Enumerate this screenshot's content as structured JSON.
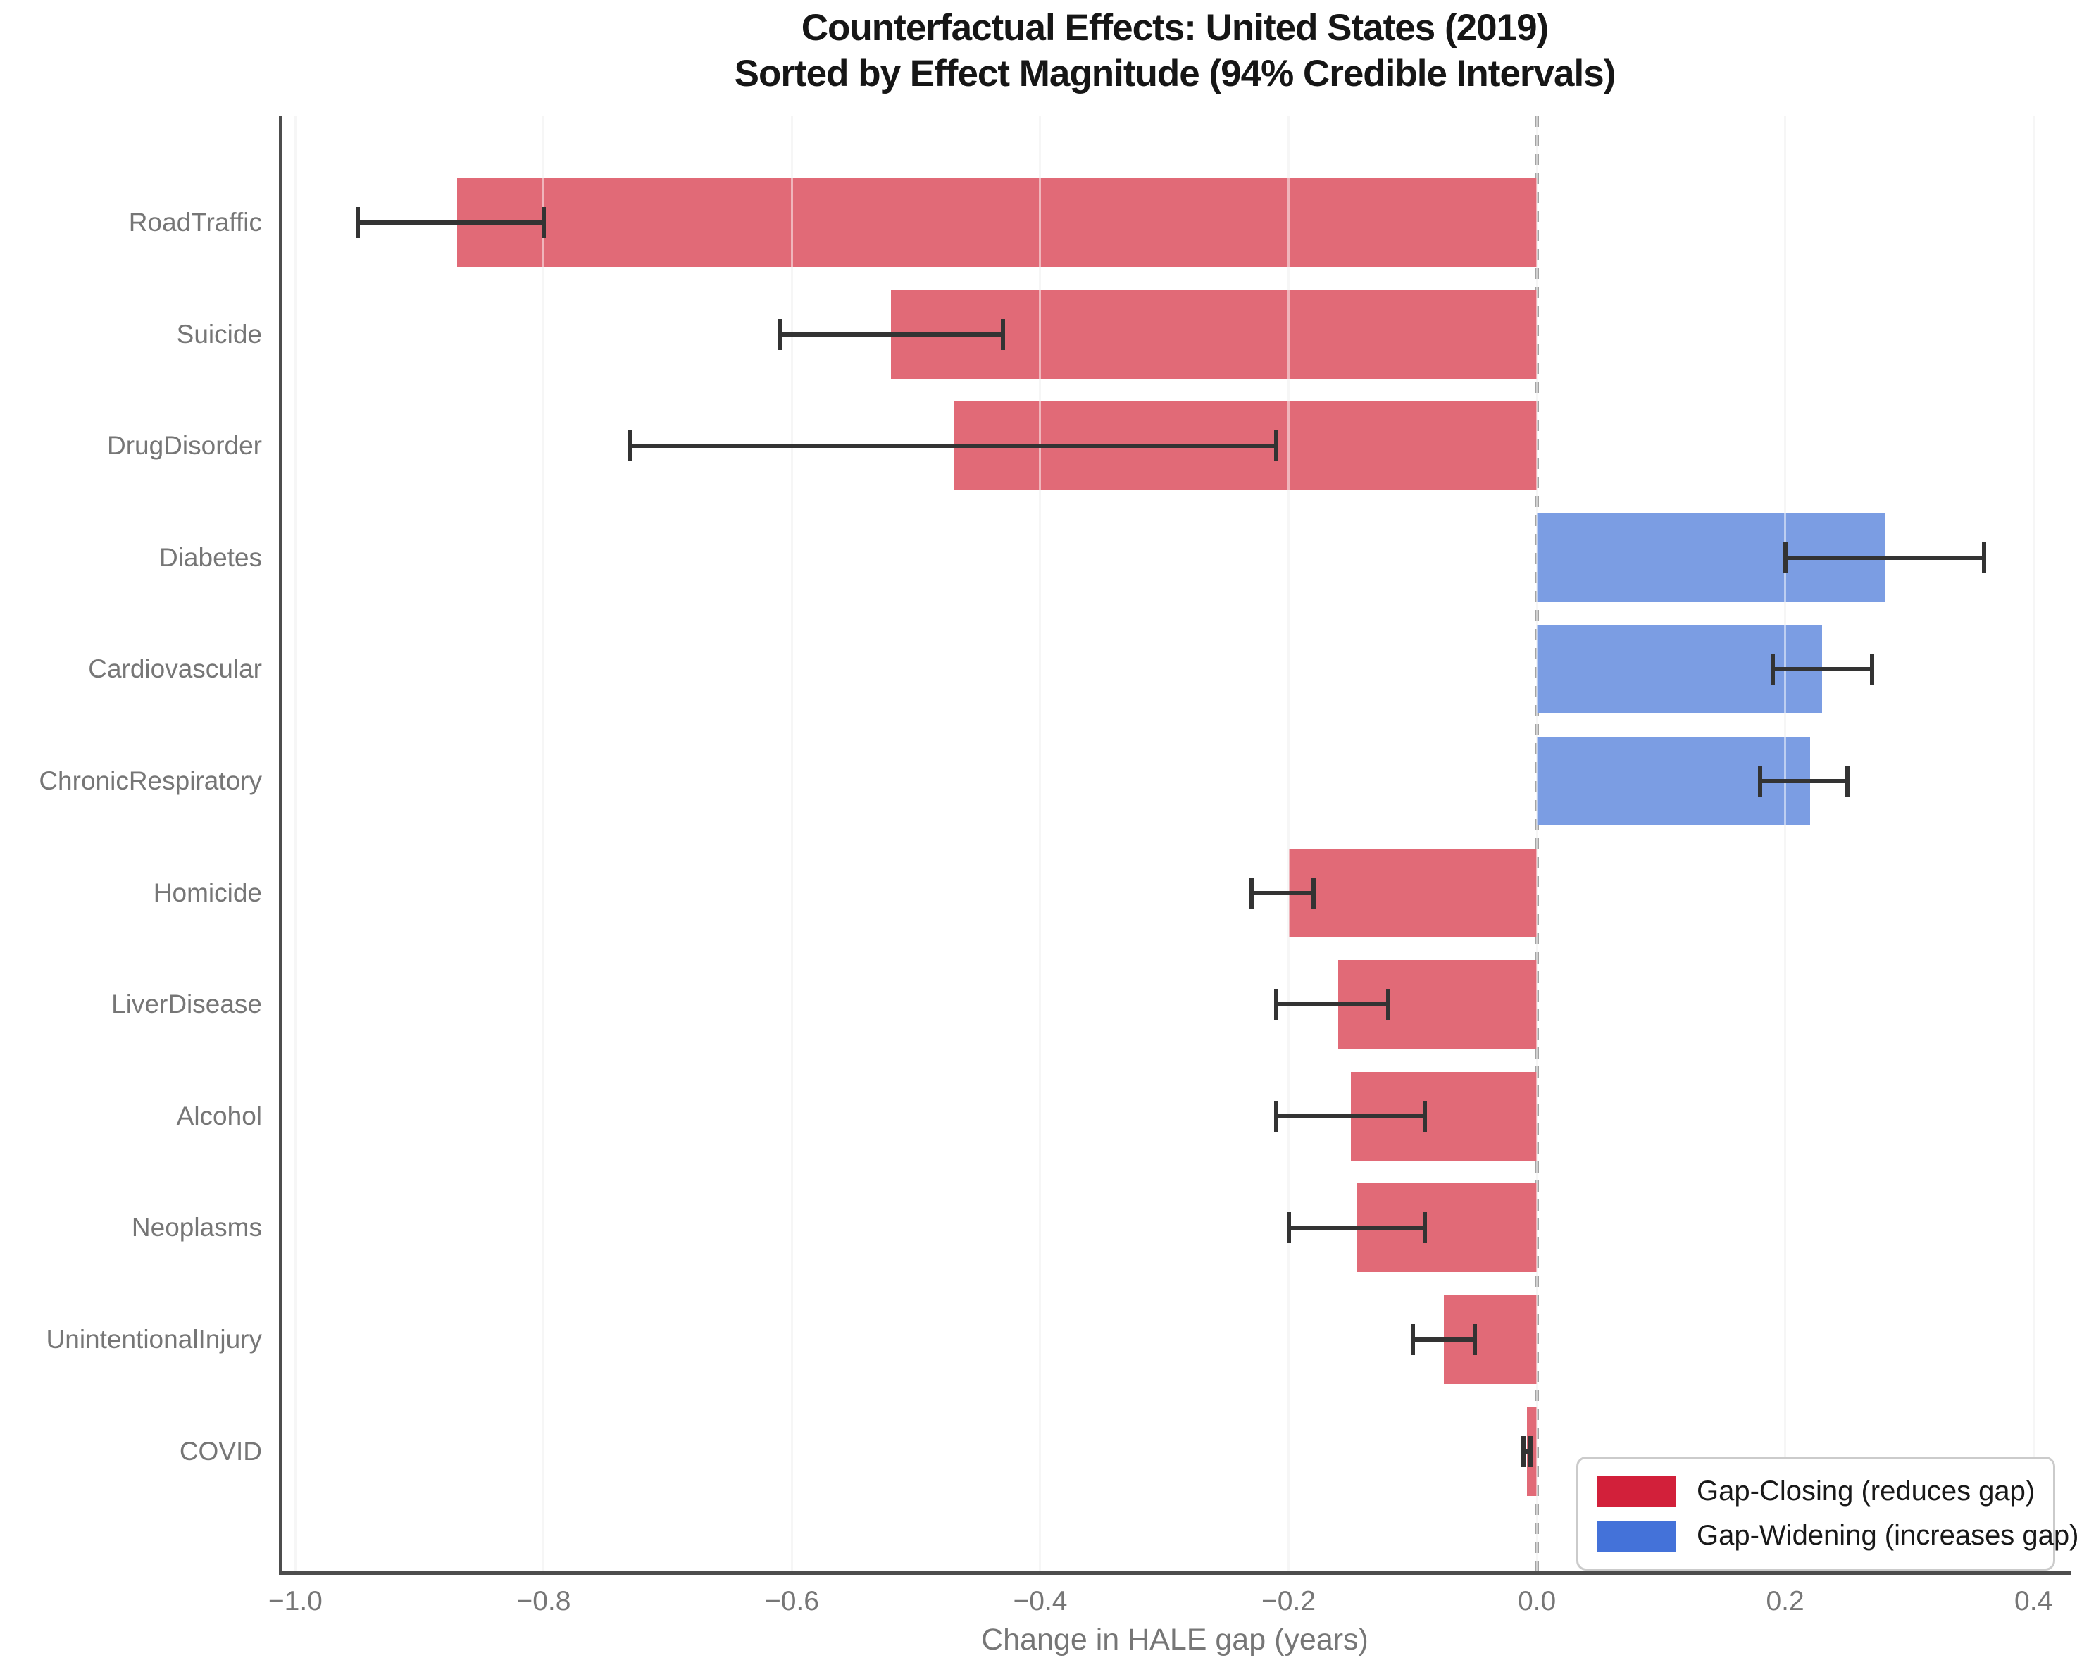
{
  "chart_data": {
    "type": "bar",
    "orientation": "horizontal",
    "title": "Counterfactual Effects: United States (2019)",
    "subtitle": "Sorted by Effect Magnitude (94% Credible Intervals)",
    "xlabel": "Change in HALE gap (years)",
    "xlim": [
      -1.011,
      0.43
    ],
    "x_ticks": [
      -1.0,
      -0.8,
      -0.6,
      -0.4,
      -0.2,
      0.0,
      0.2,
      0.4
    ],
    "x_tick_labels": [
      "−1.0",
      "−0.8",
      "−0.6",
      "−0.4",
      "−0.2",
      "0.0",
      "0.2",
      "0.4"
    ],
    "credible_interval": "94%",
    "grid": true,
    "zero_line_at": 0.0,
    "categories": [
      "RoadTraffic",
      "Suicide",
      "DrugDisorder",
      "Diabetes",
      "Cardiovascular",
      "ChronicRespiratory",
      "Homicide",
      "LiverDisease",
      "Alcohol",
      "Neoplasms",
      "UnintentionalInjury",
      "COVID"
    ],
    "values": [
      -0.87,
      -0.52,
      -0.47,
      0.28,
      0.23,
      0.22,
      -0.2,
      -0.16,
      -0.15,
      -0.145,
      -0.075,
      -0.008
    ],
    "ci_low": [
      -0.95,
      -0.61,
      -0.73,
      0.2,
      0.19,
      0.18,
      -0.23,
      -0.21,
      -0.21,
      -0.2,
      -0.1,
      -0.011
    ],
    "ci_high": [
      -0.8,
      -0.43,
      -0.21,
      0.36,
      0.27,
      0.25,
      -0.18,
      -0.12,
      -0.09,
      -0.09,
      -0.05,
      -0.005
    ],
    "directions": [
      "closing",
      "closing",
      "closing",
      "widening",
      "widening",
      "widening",
      "closing",
      "closing",
      "closing",
      "closing",
      "closing",
      "closing"
    ],
    "legend_position": "lower right"
  },
  "legend": {
    "items": [
      {
        "label": "Gap-Closing (reduces gap)",
        "color": "#d2203a",
        "kind": "closing"
      },
      {
        "label": "Gap-Widening (increases gap)",
        "color": "#4472d9",
        "kind": "widening"
      }
    ]
  },
  "colors": {
    "bar_closing": "#e16a77",
    "bar_widening": "#7b9de3",
    "error_bar": "#333333",
    "spine": "#4d4d4d",
    "gridline": "#ececec",
    "zero_line": "#a3a3a3",
    "axis_text": "#767676",
    "title_text": "#161616"
  }
}
